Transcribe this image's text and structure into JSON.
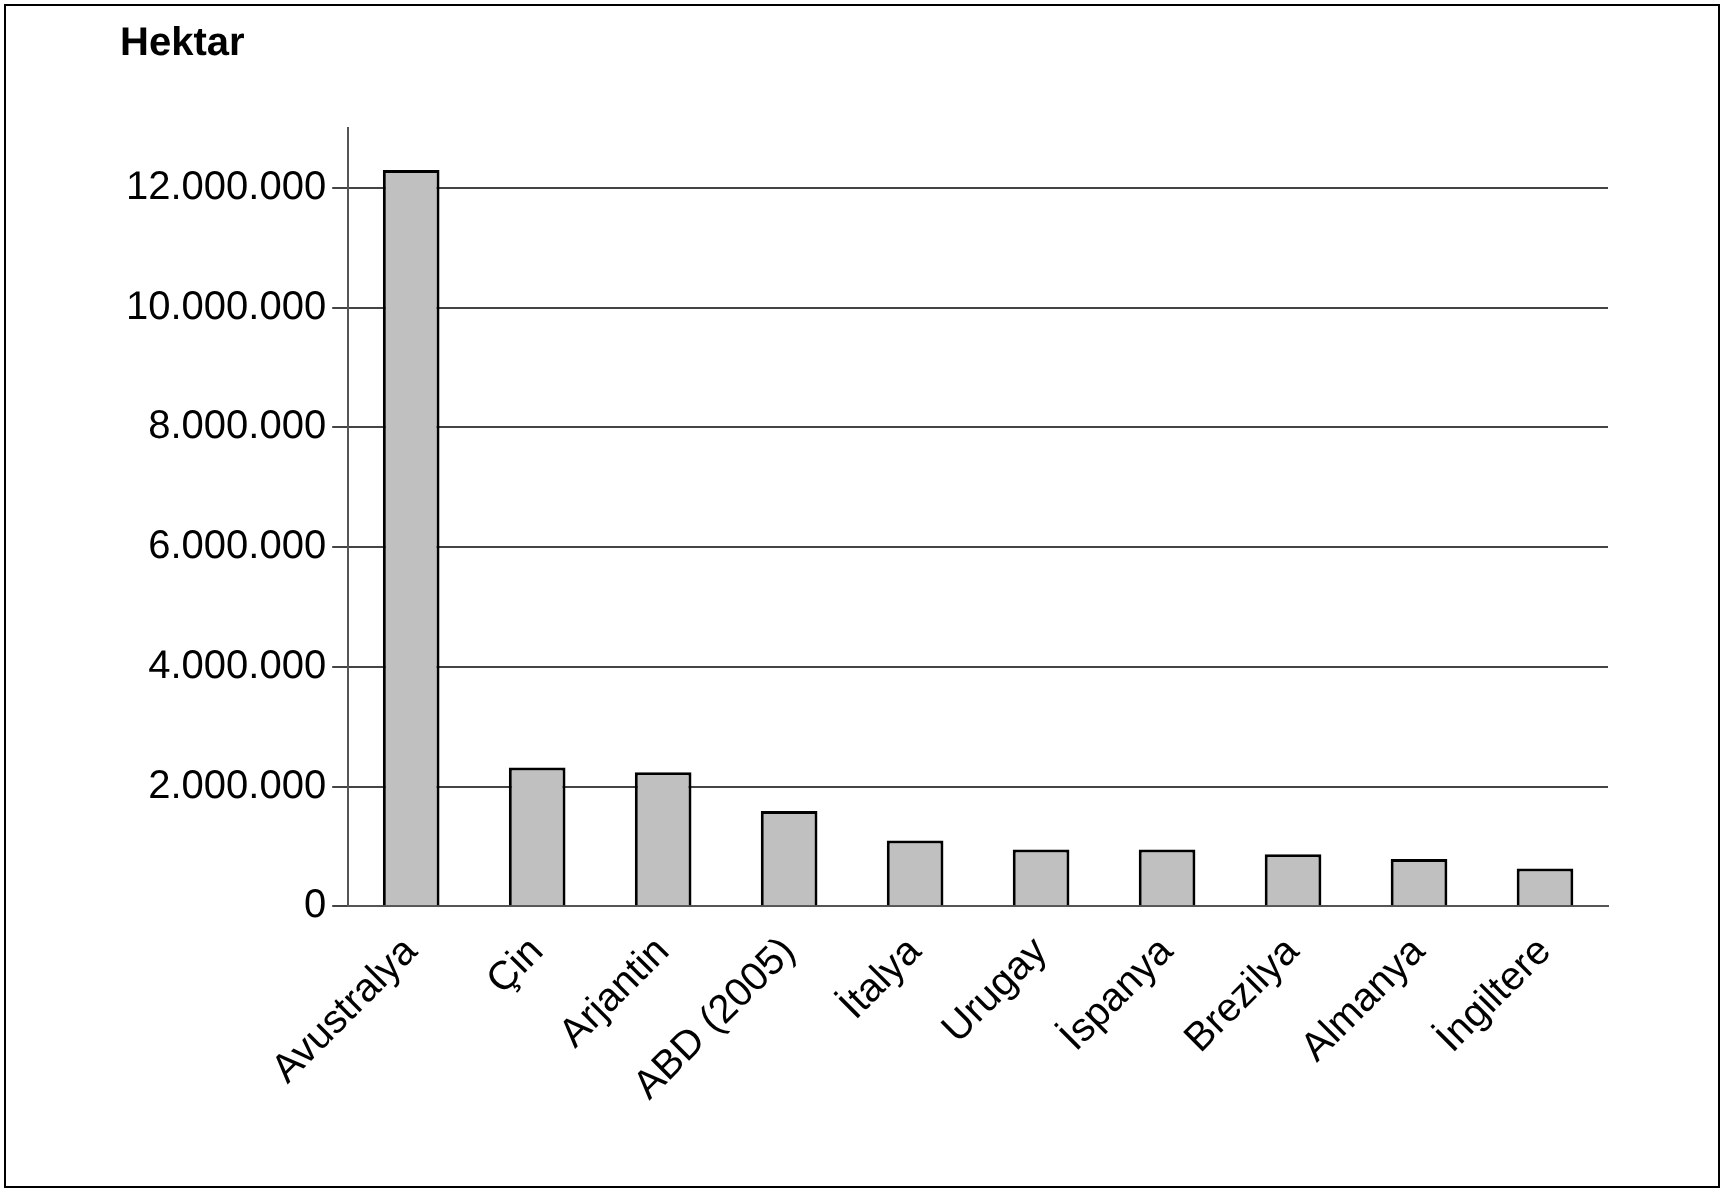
{
  "chart_data": {
    "type": "bar",
    "title": "Hektar",
    "categories": [
      "Avustralya",
      "Çin",
      "Arjantin",
      "ABD (2005)",
      "İtalya",
      "Urugay",
      "İspanya",
      "Brezilya",
      "Almanya",
      "İngiltere"
    ],
    "values": [
      12300000,
      2320000,
      2240000,
      1590000,
      1100000,
      950000,
      950000,
      870000,
      790000,
      630000
    ],
    "color": "#c0c0c0",
    "ylim": [
      0,
      13000000
    ],
    "yticks": [
      {
        "value": 0,
        "label": "0"
      },
      {
        "value": 2000000,
        "label": "2.000.000"
      },
      {
        "value": 4000000,
        "label": "4.000.000"
      },
      {
        "value": 6000000,
        "label": "6.000.000"
      },
      {
        "value": 8000000,
        "label": "8.000.000"
      },
      {
        "value": 10000000,
        "label": "10.000.000"
      },
      {
        "value": 12000000,
        "label": "12.000.000"
      }
    ],
    "grid": "y",
    "legend": false
  }
}
